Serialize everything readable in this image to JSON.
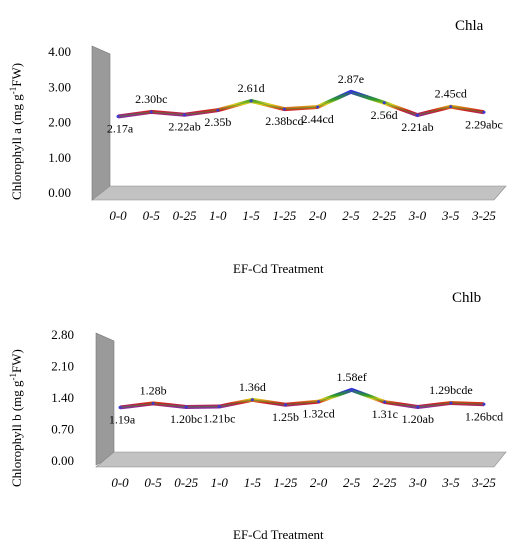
{
  "chart_data": [
    {
      "type": "line",
      "title": "Chla",
      "ylabel": "Chlorophyll a (mg g-1FW)",
      "ylabel_parts": [
        "Chlorophyll a (mg g",
        "-1",
        "FW)"
      ],
      "xlabel": "EF-Cd Treatment",
      "categories": [
        "0-0",
        "0-5",
        "0-25",
        "1-0",
        "1-5",
        "1-25",
        "2-0",
        "2-5",
        "2-25",
        "3-0",
        "3-5",
        "3-25"
      ],
      "yticks": [
        "4.00",
        "3.00",
        "2.00",
        "1.00",
        "0.00"
      ],
      "ylim": [
        0,
        4
      ],
      "series": [
        {
          "values": [
            2.17,
            2.3,
            2.22,
            2.35,
            2.61,
            2.38,
            2.44,
            2.87,
            2.56,
            2.21,
            2.45,
            2.29
          ]
        }
      ],
      "data_labels": [
        "2.17a",
        "2.30bc",
        "2.22ab",
        "2.35b",
        "2.61d",
        "2.38bcd",
        "2.44cd",
        "2.87e",
        "2.56d",
        "2.21ab",
        "2.45cd",
        "2.29abc"
      ],
      "label_side": [
        "below",
        "above",
        "below",
        "below",
        "above",
        "below",
        "below",
        "above",
        "below",
        "below",
        "above",
        "below"
      ],
      "grid": false
    },
    {
      "type": "line",
      "title": "Chlb",
      "ylabel": "Chlorophyll b (mg g-1FW)",
      "ylabel_parts": [
        "Chlorophyll b (mg g",
        "-1",
        "FW)"
      ],
      "xlabel": "EF-Cd Treatment",
      "categories": [
        "0-0",
        "0-5",
        "0-25",
        "1-0",
        "1-5",
        "1-25",
        "2-0",
        "2-5",
        "2-25",
        "3-0",
        "3-5",
        "3-25"
      ],
      "yticks": [
        "2.80",
        "2.10",
        "1.40",
        "0.70",
        "0.00"
      ],
      "ylim": [
        0,
        2.8
      ],
      "series": [
        {
          "values": [
            1.19,
            1.28,
            1.2,
            1.21,
            1.36,
            1.25,
            1.32,
            1.58,
            1.31,
            1.2,
            1.29,
            1.26
          ]
        }
      ],
      "data_labels": [
        "1.19a",
        "1.28b",
        "1.20bc",
        "1.21bc",
        "1.36d",
        "1.25b",
        "1.32cd",
        "1.58ef",
        "1.31c",
        "1.20ab",
        "1.29bcde",
        "1.26bcd"
      ],
      "label_side": [
        "below",
        "above",
        "below",
        "below",
        "above",
        "below",
        "below",
        "above",
        "below",
        "below",
        "above",
        "below"
      ],
      "grid": false
    }
  ],
  "colors": {
    "wall": "#9a9a9a",
    "floor": "#c2c2c2",
    "line_gradient": [
      "#2f2fd6",
      "#2c9a2c",
      "#e0d020",
      "#d22020",
      "#8a2c9a"
    ]
  }
}
